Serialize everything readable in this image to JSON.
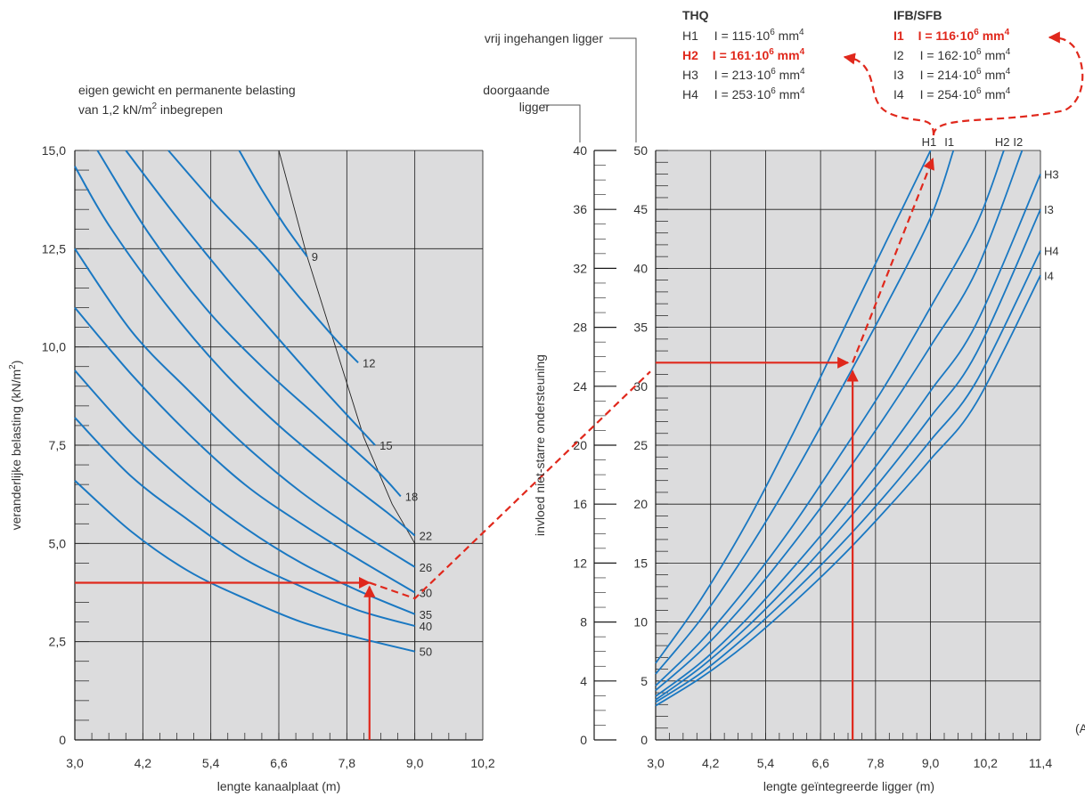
{
  "left_chart": {
    "note_line1": "eigen gewicht en permanente belasting",
    "note_line2_pre": "van 1,2 kN/m",
    "note_line2_sup": "2",
    "note_line2_post": " inbegrepen",
    "ylabel_pre": "veranderlijke belasting (kN/m",
    "ylabel_sup": "2",
    "ylabel_post": ")",
    "xlabel": "lengte kanaalplaat (m)"
  },
  "right_chart": {
    "ylabel": "invloed niet-starre ondersteuning",
    "xlabel": "lengte geïntegreerde ligger (m)",
    "scale_continuous_label_1": "doorgaande",
    "scale_continuous_label_2": "ligger",
    "scale_simple_label": "vrij ingehangen ligger"
  },
  "legend": {
    "thq_title": "THQ",
    "ifb_title": "IFB/SFB",
    "i_prefix": "I = ",
    "unit_pre": "·10",
    "unit_exp": "6",
    "unit_mm": " mm",
    "unit_mm_exp": "4",
    "thq": [
      {
        "id": "H1",
        "value": "115",
        "highlight": false
      },
      {
        "id": "H2",
        "value": "161",
        "highlight": true
      },
      {
        "id": "H3",
        "value": "213",
        "highlight": false
      },
      {
        "id": "H4",
        "value": "253",
        "highlight": false
      }
    ],
    "ifb": [
      {
        "id": "I1",
        "value": "116",
        "highlight": true
      },
      {
        "id": "I2",
        "value": "162",
        "highlight": false
      },
      {
        "id": "I3",
        "value": "214",
        "highlight": false
      },
      {
        "id": "I4",
        "value": "254",
        "highlight": false
      }
    ],
    "colors": {
      "highlight": "#e0281c",
      "text": "#333333"
    }
  },
  "corner_text": "(A",
  "chart_data": [
    {
      "type": "line",
      "xlabel": "lengte kanaalplaat (m)",
      "ylabel": "veranderlijke belasting (kN/m2)",
      "xlim": [
        3.0,
        10.2
      ],
      "ylim": [
        0,
        15.0
      ],
      "x_ticks": [
        3.0,
        4.2,
        5.4,
        6.6,
        7.8,
        9.0,
        10.2
      ],
      "x_tick_labels": [
        "3,0",
        "4,2",
        "5,4",
        "6,6",
        "7,8",
        "9,0",
        "10,2"
      ],
      "y_ticks": [
        0,
        2.5,
        5.0,
        7.5,
        10.0,
        12.5,
        15.0
      ],
      "y_tick_labels": [
        "0",
        "2,5",
        "5,0",
        "7,5",
        "10,0",
        "12,5",
        "15,0"
      ],
      "grid": true,
      "series": [
        {
          "name": "9",
          "x": [
            5.9,
            6.3,
            6.7,
            7.1
          ],
          "y": [
            15.0,
            14.0,
            13.1,
            12.3
          ]
        },
        {
          "name": "12",
          "x": [
            4.65,
            5.5,
            6.3,
            7.0,
            7.6,
            8.0
          ],
          "y": [
            15.0,
            13.6,
            12.4,
            11.2,
            10.2,
            9.6
          ]
        },
        {
          "name": "15",
          "x": [
            3.9,
            4.8,
            5.7,
            6.6,
            7.4,
            8.3
          ],
          "y": [
            15.0,
            13.3,
            11.7,
            10.2,
            8.9,
            7.5
          ]
        },
        {
          "name": "18",
          "x": [
            3.4,
            4.3,
            5.3,
            6.3,
            7.3,
            8.3,
            8.75
          ],
          "y": [
            15.0,
            12.9,
            11.0,
            9.5,
            8.2,
            6.9,
            6.2
          ]
        },
        {
          "name": "22",
          "x": [
            3.0,
            3.6,
            4.6,
            5.6,
            6.6,
            7.6,
            8.5,
            9.0
          ],
          "y": [
            14.6,
            13.1,
            11.1,
            9.4,
            8.0,
            6.8,
            5.8,
            5.2
          ]
        },
        {
          "name": "26",
          "x": [
            3.0,
            4.0,
            5.0,
            6.0,
            7.0,
            8.0,
            9.0
          ],
          "y": [
            12.5,
            10.4,
            8.9,
            7.5,
            6.3,
            5.3,
            4.4
          ]
        },
        {
          "name": "30",
          "x": [
            3.0,
            4.0,
            5.0,
            6.0,
            7.0,
            8.0,
            9.0
          ],
          "y": [
            11.0,
            9.3,
            7.8,
            6.5,
            5.5,
            4.6,
            3.75
          ]
        },
        {
          "name": "35",
          "x": [
            3.0,
            4.0,
            5.0,
            6.0,
            7.0,
            8.0,
            9.0
          ],
          "y": [
            9.4,
            7.8,
            6.5,
            5.4,
            4.5,
            3.8,
            3.2
          ]
        },
        {
          "name": "40",
          "x": [
            3.0,
            4.0,
            5.0,
            6.0,
            7.0,
            8.0,
            9.0
          ],
          "y": [
            8.2,
            6.7,
            5.6,
            4.6,
            3.9,
            3.3,
            2.9
          ]
        },
        {
          "name": "50",
          "x": [
            3.0,
            4.0,
            5.0,
            6.0,
            7.0,
            8.0,
            9.0
          ],
          "y": [
            6.6,
            5.3,
            4.3,
            3.6,
            3.0,
            2.6,
            2.25
          ]
        }
      ],
      "boundary": {
        "x": [
          6.6,
          7.1,
          7.6,
          8.1,
          8.6,
          9.0,
          9.0
        ],
        "y": [
          15.0,
          12.3,
          10.0,
          7.7,
          6.0,
          5.0,
          2.25
        ]
      },
      "example": {
        "h_line": {
          "y": 4.0,
          "x_from": 3.0,
          "x_to": 8.2
        },
        "v_arrow": {
          "x": 8.2,
          "y_from": 0,
          "y_to": 3.9
        },
        "dash_to": {
          "x": 9.0,
          "y": 3.6
        }
      }
    },
    {
      "type": "line",
      "xlabel": "lengte geïntegreerde ligger (m)",
      "ylabel": "invloed niet-starre ondersteuning",
      "xlim": [
        3.0,
        11.4
      ],
      "ylim": [
        0,
        50
      ],
      "x_ticks": [
        3.0,
        4.2,
        5.4,
        6.6,
        7.8,
        9.0,
        10.2,
        11.4
      ],
      "x_tick_labels": [
        "3,0",
        "4,2",
        "5,4",
        "6,6",
        "7,8",
        "9,0",
        "10,2",
        "11,4"
      ],
      "y_ticks": [
        0,
        5,
        10,
        15,
        20,
        25,
        30,
        35,
        40,
        45,
        50
      ],
      "y_tick_labels": [
        "0",
        "5",
        "10",
        "15",
        "20",
        "25",
        "30",
        "35",
        "40",
        "45",
        "50"
      ],
      "y2_ticks": [
        0,
        4,
        8,
        12,
        16,
        20,
        24,
        28,
        32,
        36,
        40
      ],
      "y2_tick_labels": [
        "0",
        "4",
        "8",
        "12",
        "16",
        "20",
        "24",
        "28",
        "32",
        "36",
        "40"
      ],
      "grid": true,
      "series": [
        {
          "name": "H1",
          "x": [
            3.0,
            4.0,
            5.0,
            6.0,
            7.0,
            8.0,
            9.0
          ],
          "y": [
            6.5,
            12.0,
            18.5,
            26.0,
            34.0,
            42.0,
            50.0
          ]
        },
        {
          "name": "I1",
          "x": [
            3.0,
            4.0,
            5.0,
            6.0,
            7.0,
            8.0,
            9.0,
            9.5
          ],
          "y": [
            5.6,
            10.3,
            16.0,
            22.4,
            29.4,
            36.6,
            44.3,
            50.0
          ]
        },
        {
          "name": "H2",
          "x": [
            3.0,
            4.0,
            5.0,
            6.0,
            7.0,
            8.0,
            9.0,
            10.0,
            10.6
          ],
          "y": [
            4.6,
            8.4,
            13.0,
            18.2,
            24.0,
            30.0,
            36.7,
            43.7,
            50.0
          ]
        },
        {
          "name": "I2",
          "x": [
            3.0,
            4.0,
            5.0,
            6.0,
            7.0,
            8.0,
            9.0,
            10.0,
            11.0
          ],
          "y": [
            4.2,
            7.6,
            11.8,
            16.6,
            21.8,
            27.4,
            33.4,
            39.8,
            50.0
          ]
        },
        {
          "name": "H3",
          "x": [
            3.0,
            4.0,
            5.0,
            6.0,
            7.0,
            8.0,
            9.0,
            10.0,
            11.4
          ],
          "y": [
            3.7,
            6.6,
            10.3,
            14.6,
            19.2,
            24.2,
            29.6,
            35.3,
            48.0
          ]
        },
        {
          "name": "I3",
          "x": [
            3.0,
            4.0,
            5.0,
            6.0,
            7.0,
            8.0,
            9.0,
            10.0,
            11.4
          ],
          "y": [
            3.4,
            6.2,
            9.6,
            13.5,
            17.8,
            22.4,
            27.4,
            32.8,
            45.0
          ]
        },
        {
          "name": "H4",
          "x": [
            3.0,
            4.0,
            5.0,
            6.0,
            7.0,
            8.0,
            9.0,
            10.0,
            11.4
          ],
          "y": [
            3.2,
            5.7,
            8.9,
            12.5,
            16.4,
            20.7,
            25.4,
            30.4,
            41.5
          ]
        },
        {
          "name": "I4",
          "x": [
            3.0,
            4.0,
            5.0,
            6.0,
            7.0,
            8.0,
            9.0,
            10.0,
            11.4
          ],
          "y": [
            2.9,
            5.3,
            8.2,
            11.6,
            15.3,
            19.4,
            23.8,
            28.6,
            39.4
          ]
        }
      ],
      "example": {
        "h_arrow": {
          "y2": 25.6,
          "x_from": 3.0,
          "x_to": 7.2
        },
        "v_arrow": {
          "x": 7.3,
          "y_from": 0,
          "y_to": 31.3
        },
        "dash_to_top": {
          "x": 9.05,
          "y": 49.3
        }
      }
    }
  ]
}
